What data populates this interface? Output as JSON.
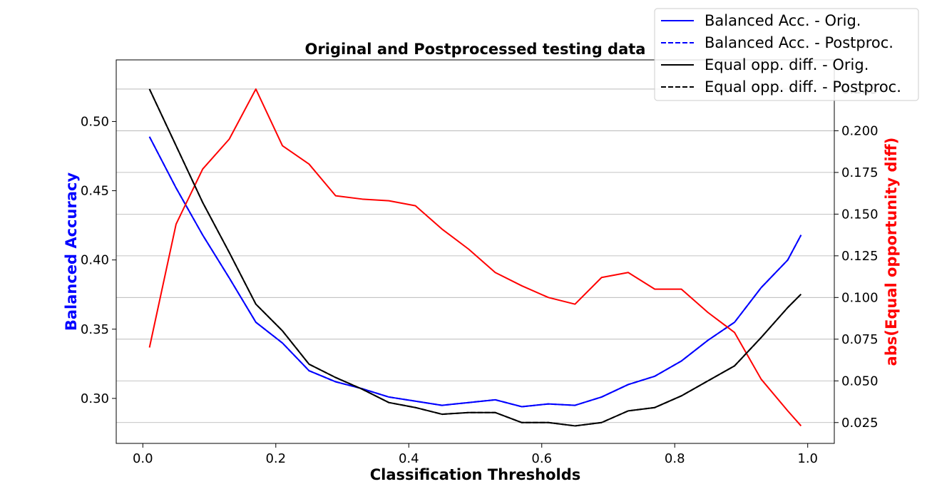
{
  "chart_data": {
    "type": "line",
    "title": "Original and Postprocessed testing data",
    "xlabel": "Classification Thresholds",
    "ylabel_left": "Balanced Accuracy",
    "ylabel_right": "abs(Equal opportunity diff)",
    "left_label_color": "#0000ff",
    "right_label_color": "#ff0000",
    "xlim": [
      -0.04,
      1.04
    ],
    "ylim_left": [
      0.2675,
      0.5445
    ],
    "ylim_right": [
      0.0125,
      0.2425
    ],
    "x_ticks": [
      0.0,
      0.2,
      0.4,
      0.6,
      0.8,
      1.0
    ],
    "x_tick_labels": [
      "0.0",
      "0.2",
      "0.4",
      "0.6",
      "0.8",
      "1.0"
    ],
    "y_left_ticks": [
      0.3,
      0.35,
      0.4,
      0.45,
      0.5
    ],
    "y_left_tick_labels": [
      "0.30",
      "0.35",
      "0.40",
      "0.45",
      "0.50"
    ],
    "y_right_ticks": [
      0.025,
      0.05,
      0.075,
      0.1,
      0.125,
      0.15,
      0.175,
      0.2,
      0.225
    ],
    "y_right_tick_labels": [
      "0.025",
      "0.050",
      "0.075",
      "0.100",
      "0.125",
      "0.150",
      "0.175",
      "0.200",
      "0.225"
    ],
    "grid": "horizontal lines at right-axis ticks",
    "legend_position": "top-right",
    "x": [
      0.01,
      0.05,
      0.09,
      0.13,
      0.17,
      0.21,
      0.25,
      0.29,
      0.33,
      0.37,
      0.41,
      0.45,
      0.49,
      0.53,
      0.57,
      0.61,
      0.65,
      0.69,
      0.73,
      0.77,
      0.81,
      0.85,
      0.89,
      0.93,
      0.97,
      0.99
    ],
    "series": [
      {
        "name": "Balanced Acc. - Orig.",
        "axis": "left",
        "color": "#0000ff",
        "dash": "solid",
        "values": [
          0.489,
          0.452,
          0.418,
          0.387,
          0.355,
          0.34,
          0.32,
          0.312,
          0.307,
          0.301,
          0.298,
          0.295,
          0.297,
          0.299,
          0.294,
          0.296,
          0.295,
          0.301,
          0.31,
          0.316,
          0.327,
          0.342,
          0.355,
          0.38,
          0.4,
          0.418
        ]
      },
      {
        "name": "Balanced Acc. - Postproc.",
        "axis": "left",
        "color": "#0000ff",
        "dash": "dashed",
        "values": [
          0.489,
          0.452,
          0.418,
          0.387,
          0.355,
          0.34,
          0.32,
          0.312,
          0.307,
          0.301,
          0.298,
          0.295,
          0.297,
          0.299,
          0.294,
          0.296,
          0.295,
          0.301,
          0.31,
          0.316,
          0.327,
          0.342,
          0.355,
          0.38,
          0.4,
          0.418
        ]
      },
      {
        "name": "Equal opp. diff. - Orig.",
        "axis": "right",
        "color": "#000000",
        "dash": "solid",
        "values": [
          0.225,
          0.191,
          0.157,
          0.127,
          0.096,
          0.08,
          0.06,
          0.052,
          0.045,
          0.037,
          0.034,
          0.03,
          0.031,
          0.031,
          0.025,
          0.025,
          0.023,
          0.025,
          0.032,
          0.034,
          0.041,
          0.05,
          0.059,
          0.076,
          0.094,
          0.102
        ]
      },
      {
        "name": "Equal opp. diff. - Postproc.",
        "axis": "right",
        "color": "#000000",
        "dash": "dashed",
        "values": [
          0.225,
          0.191,
          0.157,
          0.127,
          0.096,
          0.08,
          0.06,
          0.052,
          0.045,
          0.037,
          0.034,
          0.03,
          0.031,
          0.031,
          0.025,
          0.025,
          0.023,
          0.025,
          0.032,
          0.034,
          0.041,
          0.05,
          0.059,
          0.076,
          0.094,
          0.102
        ]
      },
      {
        "name": "",
        "axis": "right",
        "color": "#ff0000",
        "dash": "solid",
        "in_legend": false,
        "values": [
          0.07,
          0.144,
          0.177,
          0.195,
          0.225,
          0.191,
          0.18,
          0.161,
          0.159,
          0.158,
          0.155,
          0.141,
          0.129,
          0.115,
          0.107,
          0.1,
          0.096,
          0.112,
          0.115,
          0.105,
          0.105,
          0.091,
          0.079,
          0.051,
          0.032,
          0.023
        ]
      }
    ]
  }
}
